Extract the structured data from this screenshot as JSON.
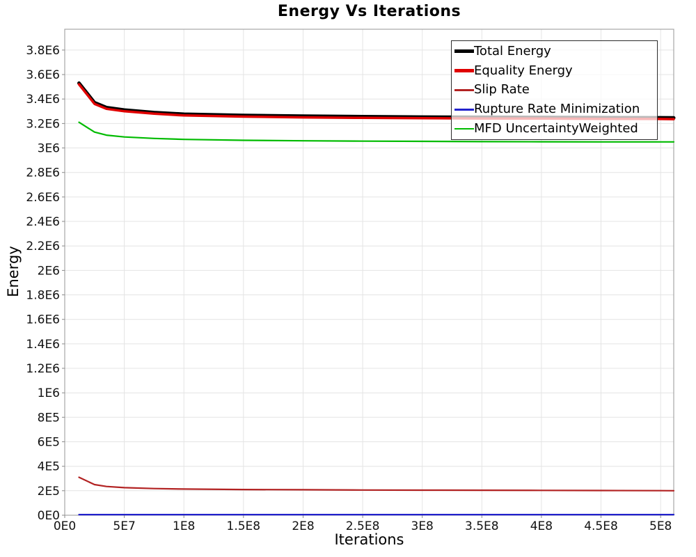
{
  "chart_data": {
    "type": "line",
    "title": "Energy Vs Iterations",
    "xlabel": "Iterations",
    "ylabel": "Energy",
    "xlim": [
      0,
      511000000
    ],
    "ylim": [
      0,
      3970000
    ],
    "grid": true,
    "legend_position": "inside-top-right",
    "colors": {
      "grid": "#e4e4e4",
      "frame": "#a6a6a6",
      "tick": "#8a8a8a",
      "text": "#111111",
      "background": "#ffffff"
    },
    "x_ticks": [
      {
        "v": 0,
        "label": "0E0"
      },
      {
        "v": 50000000,
        "label": "5E7"
      },
      {
        "v": 100000000,
        "label": "1E8"
      },
      {
        "v": 150000000,
        "label": "1.5E8"
      },
      {
        "v": 200000000,
        "label": "2E8"
      },
      {
        "v": 250000000,
        "label": "2.5E8"
      },
      {
        "v": 300000000,
        "label": "3E8"
      },
      {
        "v": 350000000,
        "label": "3.5E8"
      },
      {
        "v": 400000000,
        "label": "4E8"
      },
      {
        "v": 450000000,
        "label": "4.5E8"
      },
      {
        "v": 500000000,
        "label": "5E8"
      }
    ],
    "y_ticks": [
      {
        "v": 0,
        "label": "0E0"
      },
      {
        "v": 200000,
        "label": "2E5"
      },
      {
        "v": 400000,
        "label": "4E5"
      },
      {
        "v": 600000,
        "label": "6E5"
      },
      {
        "v": 800000,
        "label": "8E5"
      },
      {
        "v": 1000000,
        "label": "1E6"
      },
      {
        "v": 1200000,
        "label": "1.2E6"
      },
      {
        "v": 1400000,
        "label": "1.4E6"
      },
      {
        "v": 1600000,
        "label": "1.6E6"
      },
      {
        "v": 1800000,
        "label": "1.8E6"
      },
      {
        "v": 2000000,
        "label": "2E6"
      },
      {
        "v": 2200000,
        "label": "2.2E6"
      },
      {
        "v": 2400000,
        "label": "2.4E6"
      },
      {
        "v": 2600000,
        "label": "2.6E6"
      },
      {
        "v": 2800000,
        "label": "2.8E6"
      },
      {
        "v": 3000000,
        "label": "3E6"
      },
      {
        "v": 3200000,
        "label": "3.2E6"
      },
      {
        "v": 3400000,
        "label": "3.4E6"
      },
      {
        "v": 3600000,
        "label": "3.6E6"
      },
      {
        "v": 3800000,
        "label": "3.8E6"
      }
    ],
    "x": [
      12000000,
      25000000,
      35000000,
      50000000,
      75000000,
      100000000,
      150000000,
      200000000,
      250000000,
      300000000,
      350000000,
      400000000,
      450000000,
      500000000,
      511000000
    ],
    "series": [
      {
        "name": "Total Energy",
        "color": "#000000",
        "width": 5,
        "values": [
          3530000,
          3370000,
          3330000,
          3310000,
          3290000,
          3276000,
          3266000,
          3260000,
          3256000,
          3253000,
          3251000,
          3250000,
          3248000,
          3247000,
          3246000
        ]
      },
      {
        "name": "Equality Energy",
        "color": "#e00000",
        "width": 3.5,
        "values": [
          3520000,
          3360000,
          3320000,
          3300000,
          3280000,
          3266000,
          3256000,
          3250000,
          3246000,
          3243000,
          3241000,
          3240000,
          3238000,
          3237000,
          3236000
        ]
      },
      {
        "name": "Slip Rate",
        "color": "#b22222",
        "width": 2.2,
        "values": [
          310000,
          250000,
          235000,
          225000,
          218000,
          214000,
          210000,
          208000,
          206000,
          205000,
          204000,
          203000,
          202000,
          201000,
          200000
        ]
      },
      {
        "name": "Rupture Rate Minimization",
        "color": "#2222cc",
        "width": 2.2,
        "values": [
          5000,
          5000,
          5000,
          5000,
          5000,
          5000,
          5000,
          5000,
          5000,
          5000,
          5000,
          5000,
          5000,
          5000,
          5000
        ]
      },
      {
        "name": "MFD UncertaintyWeighted",
        "color": "#00bb00",
        "width": 2.2,
        "values": [
          3210000,
          3130000,
          3105000,
          3090000,
          3078000,
          3070000,
          3063000,
          3059000,
          3056000,
          3054000,
          3052000,
          3051000,
          3050000,
          3050000,
          3050000
        ]
      }
    ]
  }
}
